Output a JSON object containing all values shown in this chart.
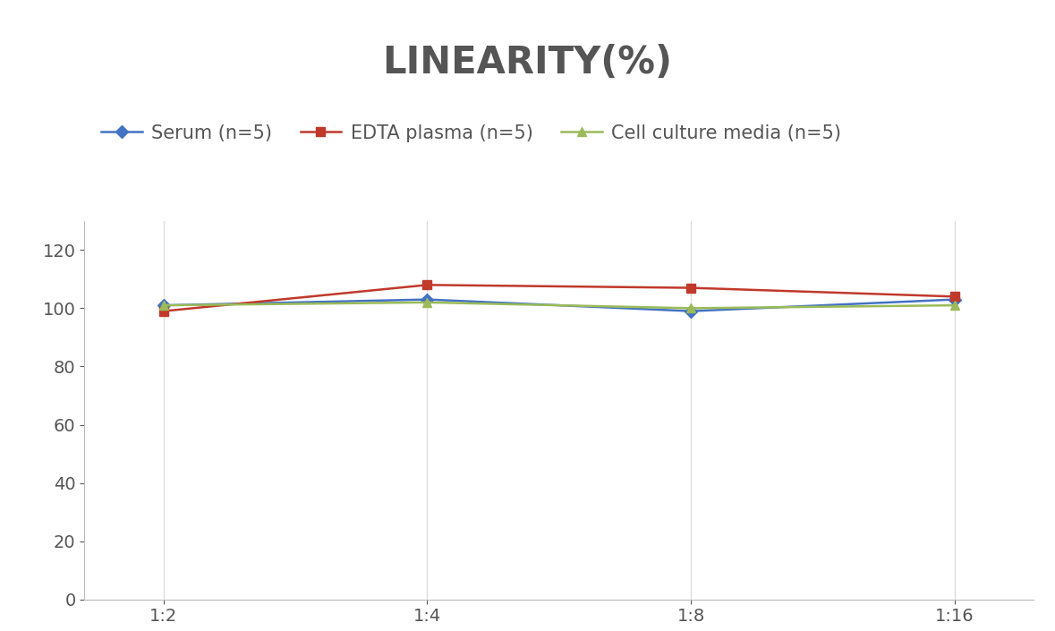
{
  "title": "LINEARITY(%)",
  "title_fontsize": 30,
  "title_color": "#555555",
  "title_fontweight": "bold",
  "x_labels": [
    "1:2",
    "1:4",
    "1:8",
    "1:16"
  ],
  "x_values": [
    0,
    1,
    2,
    3
  ],
  "series": [
    {
      "label": "Serum (n=5)",
      "values": [
        101,
        103,
        99,
        103
      ],
      "color": "#4472C4",
      "marker": "D",
      "marker_size": 7,
      "linewidth": 1.8
    },
    {
      "label": "EDTA plasma (n=5)",
      "values": [
        99,
        108,
        107,
        104
      ],
      "color": "#C0392B",
      "marker": "s",
      "marker_size": 7,
      "linewidth": 1.8
    },
    {
      "label": "Cell culture media (n=5)",
      "values": [
        101,
        102,
        100,
        101
      ],
      "color": "#9BBB59",
      "marker": "^",
      "marker_size": 7,
      "linewidth": 1.8
    }
  ],
  "ylim": [
    0,
    130
  ],
  "yticks": [
    0,
    20,
    40,
    60,
    80,
    100,
    120
  ],
  "grid_color": "#DDDDDD",
  "legend_fontsize": 15,
  "tick_fontsize": 14,
  "background_color": "#FFFFFF"
}
